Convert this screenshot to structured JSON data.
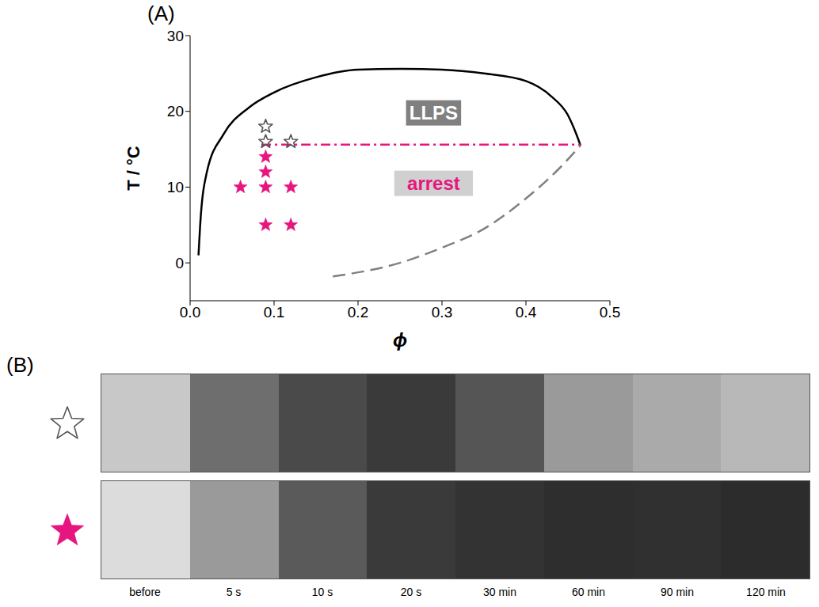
{
  "chart_data": {
    "type": "line",
    "panel_label": "(A)",
    "x_label": "ϕ",
    "y_label": "T / °C",
    "xlim": [
      0,
      0.5
    ],
    "ylim": [
      -5,
      30
    ],
    "xticks": [
      {
        "value": 0,
        "label": "0.0"
      },
      0.1,
      0.2,
      0.3,
      0.4,
      0.5
    ],
    "yticks": [
      0,
      10,
      20,
      30
    ],
    "series": [
      {
        "type": "line",
        "color": "#000000",
        "line_style": "solid",
        "x": [
          0.01,
          0.012,
          0.02,
          0.04,
          0.07,
          0.1,
          0.15,
          0.2,
          0.25,
          0.3,
          0.35,
          0.4,
          0.43,
          0.45,
          0.46,
          0.465
        ],
        "y": [
          1,
          5,
          12,
          17,
          20.5,
          22.5,
          24.5,
          25.5,
          25.6,
          25.5,
          25,
          24,
          22,
          19.5,
          17,
          15.5
        ]
      },
      {
        "type": "line",
        "color": "#808080",
        "line_style": "dashed",
        "x": [
          0.17,
          0.25,
          0.3,
          0.35,
          0.4,
          0.44,
          0.465
        ],
        "y": [
          -1.8,
          0,
          2,
          4.5,
          8.5,
          12.5,
          15.5
        ]
      },
      {
        "type": "line",
        "color": "#e6157f",
        "line_style": "dashdot",
        "x": [
          0.085,
          0.465
        ],
        "y": [
          15.6,
          15.6
        ]
      },
      {
        "type": "scatter",
        "marker": "open_star",
        "color": "#555555",
        "x": [
          0.09,
          0.09,
          0.12
        ],
        "y": [
          18,
          16,
          16
        ]
      },
      {
        "type": "scatter",
        "marker": "filled_star",
        "color": "#e6157f",
        "x": [
          0.09,
          0.09,
          0.06,
          0.09,
          0.12,
          0.09,
          0.12
        ],
        "y": [
          14,
          12,
          10,
          10,
          10,
          5,
          5
        ]
      }
    ],
    "annotations": [
      {
        "text": "LLPS",
        "x": 0.29,
        "y": 19.8,
        "color": "#ffffff",
        "background": "#808080"
      },
      {
        "text": "arrest",
        "x": 0.29,
        "y": 10.5,
        "color": "#e6157f",
        "background": "#d0d0d0"
      }
    ]
  },
  "panel_b": {
    "panel_label": "(B)",
    "time_labels": [
      "before",
      "5 s",
      "10 s",
      "20 s",
      "30 min",
      "60 min",
      "90 min",
      "120 min"
    ],
    "rows": [
      {
        "marker": "open_star",
        "color": "#555555",
        "colors": [
          "#c8c8c8",
          "#6e6e6e",
          "#4a4a4a",
          "#3a3a3a",
          "#555555",
          "#9a9a9a",
          "#aaaaaa",
          "#b8b8b8"
        ]
      },
      {
        "marker": "filled_star",
        "color": "#e6157f",
        "colors": [
          "#dcdcdc",
          "#9a9a9a",
          "#5a5a5a",
          "#3a3a3a",
          "#333333",
          "#2e2e2e",
          "#303030",
          "#2c2c2c"
        ]
      }
    ]
  }
}
